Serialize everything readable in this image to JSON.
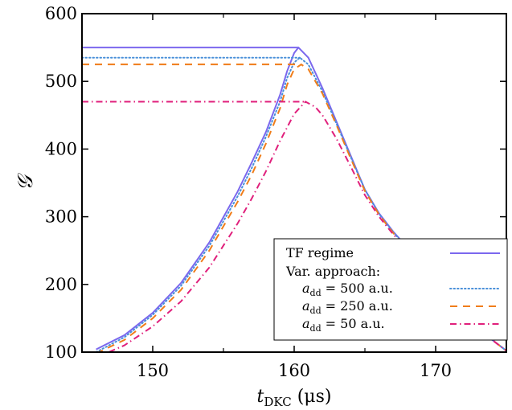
{
  "chart_data": {
    "type": "line",
    "xlabel": "t_DKC (μs)",
    "xlabel_main": "t",
    "xlabel_sub": "DKC",
    "xlabel_unit": " (μs)",
    "ylabel": "𝒢",
    "xlim": [
      145,
      175
    ],
    "ylim": [
      100,
      600
    ],
    "xticks": [
      150,
      160,
      170
    ],
    "yticks": [
      100,
      200,
      300,
      400,
      500,
      600
    ],
    "grid": false,
    "legend_position": "bottom-right",
    "legend": {
      "tf": "TF regime",
      "var_header": "Var. approach:",
      "var_prefix": "a",
      "var_sub": "dd",
      "entries": [
        {
          "value": "= 500 a.u."
        },
        {
          "value": "= 250 a.u."
        },
        {
          "value": "= 50 a.u."
        }
      ]
    },
    "series": [
      {
        "name": "TF regime",
        "color": "#7b68ee",
        "dash": "solid",
        "plateau": 550,
        "plateau_end_x": 160.3,
        "rise": [
          [
            146,
            104
          ],
          [
            148,
            125
          ],
          [
            150,
            158
          ],
          [
            152,
            202
          ],
          [
            154,
            262
          ],
          [
            156,
            337
          ],
          [
            157,
            380
          ],
          [
            158,
            425
          ],
          [
            159,
            480
          ],
          [
            159.5,
            515
          ],
          [
            160,
            542
          ],
          [
            160.3,
            550
          ]
        ],
        "fall": [
          [
            160.3,
            550
          ],
          [
            161,
            535
          ],
          [
            162,
            490
          ],
          [
            163,
            440
          ],
          [
            164,
            390
          ],
          [
            165,
            340
          ],
          [
            166,
            305
          ],
          [
            167,
            278
          ],
          [
            168,
            255
          ],
          [
            169,
            232
          ],
          [
            170,
            200
          ],
          [
            171,
            178
          ],
          [
            172,
            158
          ],
          [
            173,
            138
          ],
          [
            174,
            118
          ],
          [
            175,
            102
          ]
        ]
      },
      {
        "name": "a_dd = 500 a.u.",
        "color": "#4a90d9",
        "dash": "dotted",
        "plateau": 535,
        "plateau_end_x": 160.4,
        "rise": [
          [
            146,
            100
          ],
          [
            148,
            122
          ],
          [
            150,
            155
          ],
          [
            152,
            198
          ],
          [
            154,
            257
          ],
          [
            156,
            330
          ],
          [
            157,
            372
          ],
          [
            158,
            418
          ],
          [
            159,
            470
          ],
          [
            159.5,
            505
          ],
          [
            160,
            528
          ],
          [
            160.4,
            535
          ]
        ],
        "fall": [
          [
            160.4,
            535
          ],
          [
            161,
            525
          ],
          [
            162,
            485
          ],
          [
            163,
            437
          ],
          [
            164,
            388
          ],
          [
            165,
            340
          ],
          [
            166,
            304
          ],
          [
            167,
            277
          ],
          [
            168,
            254
          ],
          [
            169,
            231
          ],
          [
            170,
            200
          ],
          [
            171,
            178
          ],
          [
            172,
            158
          ],
          [
            173,
            138
          ],
          [
            174,
            118
          ],
          [
            175,
            102
          ]
        ]
      },
      {
        "name": "a_dd = 250 a.u.",
        "color": "#f07d1a",
        "dash": "dashed",
        "plateau": 525,
        "plateau_end_x": 160.5,
        "rise": [
          [
            146,
            98
          ],
          [
            148,
            118
          ],
          [
            150,
            150
          ],
          [
            152,
            192
          ],
          [
            154,
            250
          ],
          [
            156,
            322
          ],
          [
            157,
            362
          ],
          [
            158,
            408
          ],
          [
            159,
            460
          ],
          [
            159.5,
            495
          ],
          [
            160,
            518
          ],
          [
            160.5,
            525
          ]
        ],
        "fall": [
          [
            160.5,
            525
          ],
          [
            161,
            518
          ],
          [
            162,
            482
          ],
          [
            163,
            435
          ],
          [
            164,
            386
          ],
          [
            165,
            338
          ],
          [
            166,
            303
          ],
          [
            167,
            276
          ],
          [
            168,
            253
          ],
          [
            169,
            230
          ],
          [
            170,
            200
          ],
          [
            171,
            178
          ],
          [
            172,
            158
          ],
          [
            173,
            138
          ],
          [
            174,
            118
          ],
          [
            175,
            102
          ]
        ]
      },
      {
        "name": "a_dd = 50 a.u.",
        "color": "#e0207c",
        "dash": "dashdot",
        "plateau": 470,
        "plateau_end_x": 160.8,
        "rise": [
          [
            146,
            92
          ],
          [
            148,
            110
          ],
          [
            150,
            138
          ],
          [
            152,
            175
          ],
          [
            154,
            225
          ],
          [
            156,
            290
          ],
          [
            157,
            327
          ],
          [
            158,
            367
          ],
          [
            159,
            412
          ],
          [
            160,
            452
          ],
          [
            160.8,
            470
          ]
        ],
        "fall": [
          [
            160.8,
            470
          ],
          [
            161.5,
            462
          ],
          [
            162,
            450
          ],
          [
            163,
            415
          ],
          [
            164,
            374
          ],
          [
            165,
            332
          ],
          [
            166,
            300
          ],
          [
            167,
            274
          ],
          [
            168,
            252
          ],
          [
            169,
            229
          ],
          [
            170,
            200
          ],
          [
            171,
            178
          ],
          [
            172,
            158
          ],
          [
            173,
            138
          ],
          [
            174,
            118
          ],
          [
            175,
            102
          ]
        ]
      }
    ]
  }
}
